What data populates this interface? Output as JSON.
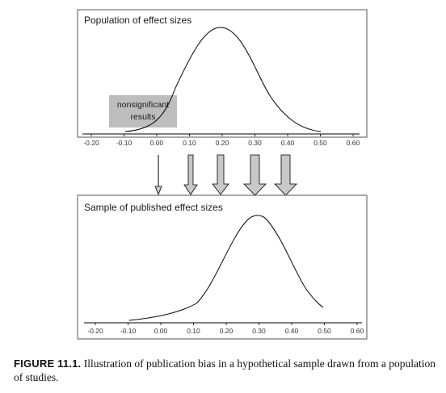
{
  "top_panel": {
    "title": "Population of effect sizes",
    "ticks": [
      "-0.20",
      "-0.10",
      "0.00",
      "0.10",
      "0.20",
      "0.30",
      "0.40",
      "0.50",
      "0.60"
    ],
    "shaded_label_line1": "nonsignificant",
    "shaded_label_line2": "results"
  },
  "bottom_panel": {
    "title": "Sample of published effect sizes",
    "ticks": [
      "-0.20",
      "-0.10",
      "0.00",
      "0.10",
      "0.20",
      "0.30",
      "0.40",
      "0.50",
      "0.60"
    ]
  },
  "arrows": {
    "count": 5
  },
  "caption": {
    "label": "FIGURE 11.1.",
    "text": "Illustration of publication bias in a hypothetical sample drawn from a population of studies."
  },
  "colors": {
    "shaded_box": "#bdbdbd",
    "arrow_fill": "#c8c8c8",
    "line": "#000000"
  }
}
